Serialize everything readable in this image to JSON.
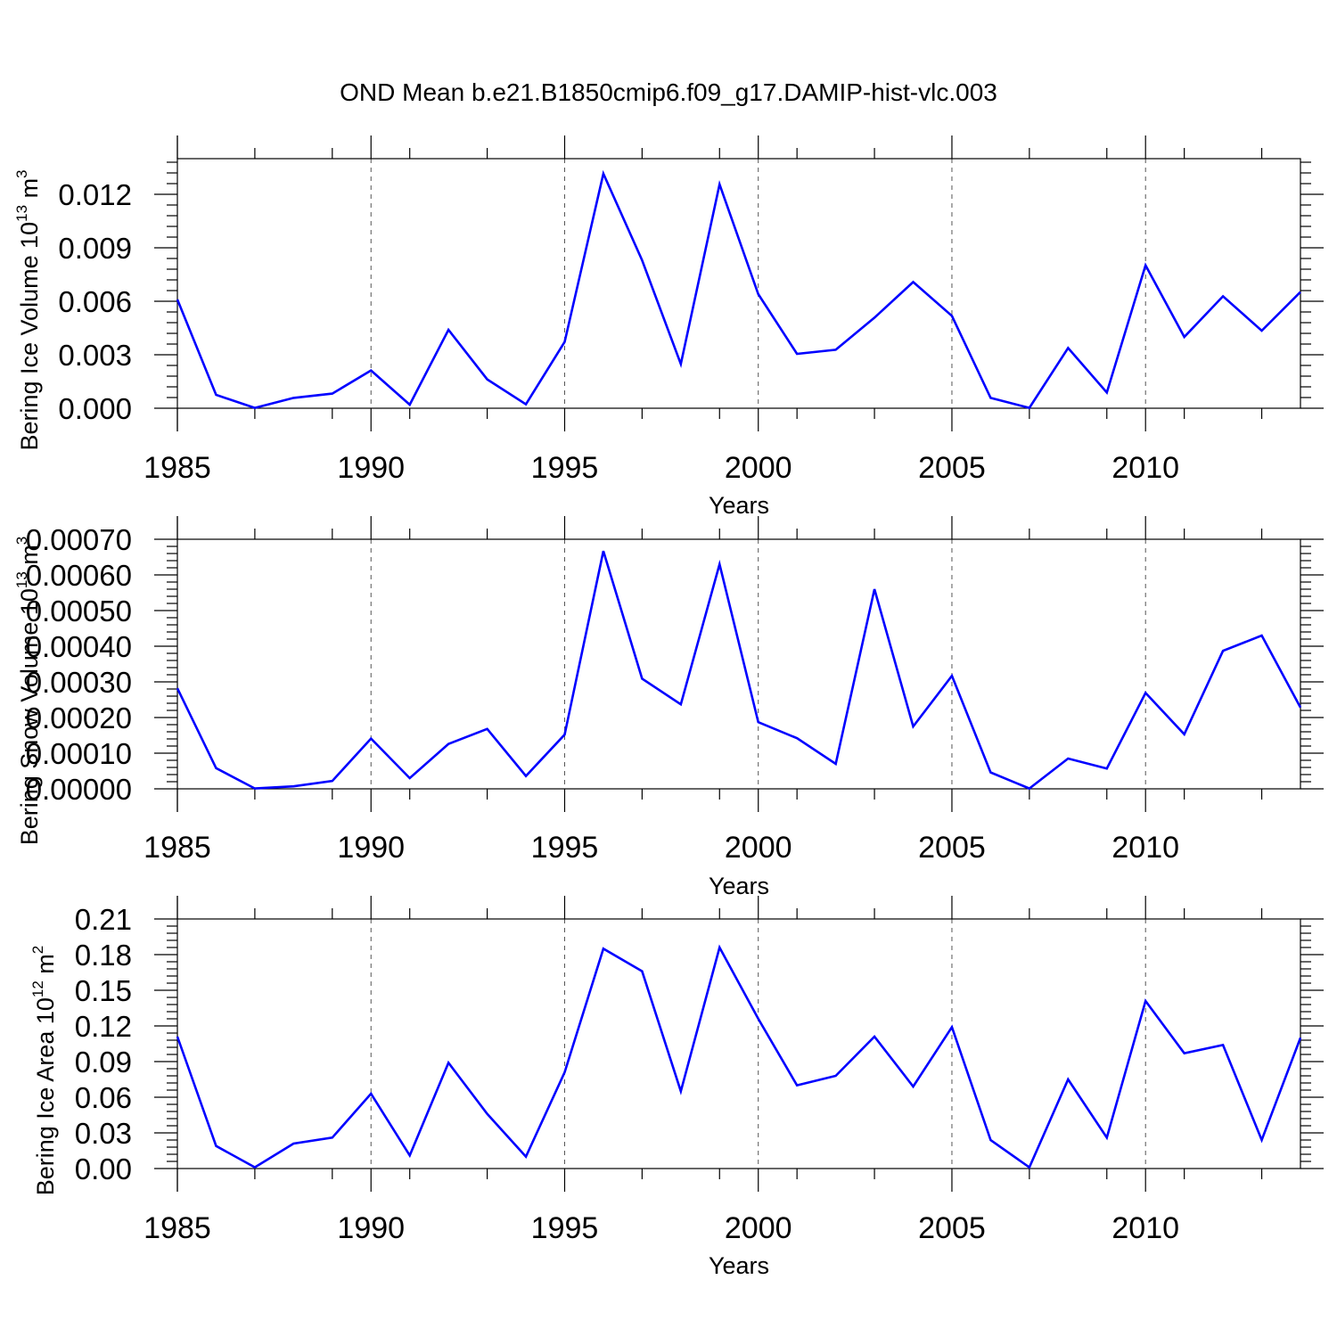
{
  "figure_title": "OND Mean b.e21.B1850cmip6.f09_g17.DAMIP-hist-vlc.003",
  "colors": {
    "line": "#0000ff",
    "axes": "#000000",
    "grid": "#555555",
    "background": "#ffffff"
  },
  "chart_data": [
    {
      "type": "line",
      "id": "ice-volume",
      "title": "",
      "xlabel": "Years",
      "ylabel": "Bering Ice Volume 10",
      "ylabel_exp": "13",
      "ylabel_unit": " m",
      "ylabel_unit_exp": "3",
      "xlim": [
        1985,
        2014
      ],
      "ylim": [
        0,
        0.014
      ],
      "x_ticks": [
        1985,
        1990,
        1995,
        2000,
        2005,
        2010
      ],
      "x_tick_labels": [
        "1985",
        "1990",
        "1995",
        "2000",
        "2005",
        "2010"
      ],
      "y_ticks": [
        0,
        0.003,
        0.006,
        0.009,
        0.012
      ],
      "y_tick_labels": [
        "0.000",
        "0.003",
        "0.006",
        "0.009",
        "0.012"
      ],
      "y_minor_step": 0.0006,
      "grid": "vertical dashed at major x ticks",
      "x": [
        1985,
        1986,
        1987,
        1988,
        1989,
        1990,
        1991,
        1992,
        1993,
        1994,
        1995,
        1996,
        1997,
        1998,
        1999,
        2000,
        2001,
        2002,
        2003,
        2004,
        2005,
        2006,
        2007,
        2008,
        2009,
        2010,
        2011,
        2012,
        2013,
        2014
      ],
      "series": [
        {
          "name": "Bering Ice Volume",
          "values": [
            0.0061,
            0.00075,
            2e-05,
            0.00058,
            0.00082,
            0.00212,
            0.0002,
            0.0044,
            0.00162,
            0.00022,
            0.00372,
            0.01316,
            0.0083,
            0.00248,
            0.01256,
            0.0064,
            0.00305,
            0.00328,
            0.00508,
            0.00708,
            0.00518,
            0.00058,
            2e-05,
            0.00338,
            0.00088,
            0.00802,
            0.004,
            0.00628,
            0.00435,
            0.00652
          ]
        }
      ]
    },
    {
      "type": "line",
      "id": "snow-volume",
      "title": "",
      "xlabel": "Years",
      "ylabel": "Bering Snow Volume 10",
      "ylabel_exp": "13",
      "ylabel_unit": " m",
      "ylabel_unit_exp": "3",
      "xlim": [
        1985,
        2014
      ],
      "ylim": [
        0,
        0.0007
      ],
      "x_ticks": [
        1985,
        1990,
        1995,
        2000,
        2005,
        2010
      ],
      "x_tick_labels": [
        "1985",
        "1990",
        "1995",
        "2000",
        "2005",
        "2010"
      ],
      "y_ticks": [
        0,
        0.0001,
        0.0002,
        0.0003,
        0.0004,
        0.0005,
        0.0006,
        0.0007
      ],
      "y_tick_labels": [
        "0.00000",
        "0.00010",
        "0.00020",
        "0.00030",
        "0.00040",
        "0.00050",
        "0.00060",
        "0.00070"
      ],
      "y_minor_step": 2e-05,
      "grid": "vertical dashed at major x ticks",
      "x": [
        1985,
        1986,
        1987,
        1988,
        1989,
        1990,
        1991,
        1992,
        1993,
        1994,
        1995,
        1996,
        1997,
        1998,
        1999,
        2000,
        2001,
        2002,
        2003,
        2004,
        2005,
        2006,
        2007,
        2008,
        2009,
        2010,
        2011,
        2012,
        2013,
        2014
      ],
      "series": [
        {
          "name": "Bering Snow Volume",
          "values": [
            0.000282,
            5.8e-05,
            1e-06,
            7e-06,
            2.2e-05,
            0.000141,
            3e-05,
            0.000126,
            0.000168,
            3.6e-05,
            0.000152,
            0.000667,
            0.000309,
            0.000237,
            0.00063,
            0.000187,
            0.000142,
            7e-05,
            0.00056,
            0.000175,
            0.000317,
            4.6e-05,
            1e-06,
            8.5e-05,
            5.7e-05,
            0.000269,
            0.000153,
            0.000387,
            0.00043,
            0.000228
          ]
        }
      ]
    },
    {
      "type": "line",
      "id": "ice-area",
      "title": "",
      "xlabel": "Years",
      "ylabel": "Bering Ice Area 10",
      "ylabel_exp": "12",
      "ylabel_unit": " m",
      "ylabel_unit_exp": "2",
      "xlim": [
        1985,
        2014
      ],
      "ylim": [
        0,
        0.21
      ],
      "x_ticks": [
        1985,
        1990,
        1995,
        2000,
        2005,
        2010
      ],
      "x_tick_labels": [
        "1985",
        "1990",
        "1995",
        "2000",
        "2005",
        "2010"
      ],
      "y_ticks": [
        0,
        0.03,
        0.06,
        0.09,
        0.12,
        0.15,
        0.18,
        0.21
      ],
      "y_tick_labels": [
        "0.00",
        "0.03",
        "0.06",
        "0.09",
        "0.12",
        "0.15",
        "0.18",
        "0.21"
      ],
      "y_minor_step": 0.006,
      "grid": "vertical dashed at major x ticks",
      "x": [
        1985,
        1986,
        1987,
        1988,
        1989,
        1990,
        1991,
        1992,
        1993,
        1994,
        1995,
        1996,
        1997,
        1998,
        1999,
        2000,
        2001,
        2002,
        2003,
        2004,
        2005,
        2006,
        2007,
        2008,
        2009,
        2010,
        2011,
        2012,
        2013,
        2014
      ],
      "series": [
        {
          "name": "Bering Ice Area",
          "values": [
            0.111,
            0.019,
            0.001,
            0.021,
            0.026,
            0.063,
            0.011,
            0.089,
            0.046,
            0.01,
            0.081,
            0.185,
            0.166,
            0.065,
            0.186,
            0.126,
            0.07,
            0.078,
            0.111,
            0.069,
            0.119,
            0.024,
            0.001,
            0.075,
            0.026,
            0.141,
            0.097,
            0.104,
            0.024,
            0.11
          ]
        }
      ]
    }
  ]
}
